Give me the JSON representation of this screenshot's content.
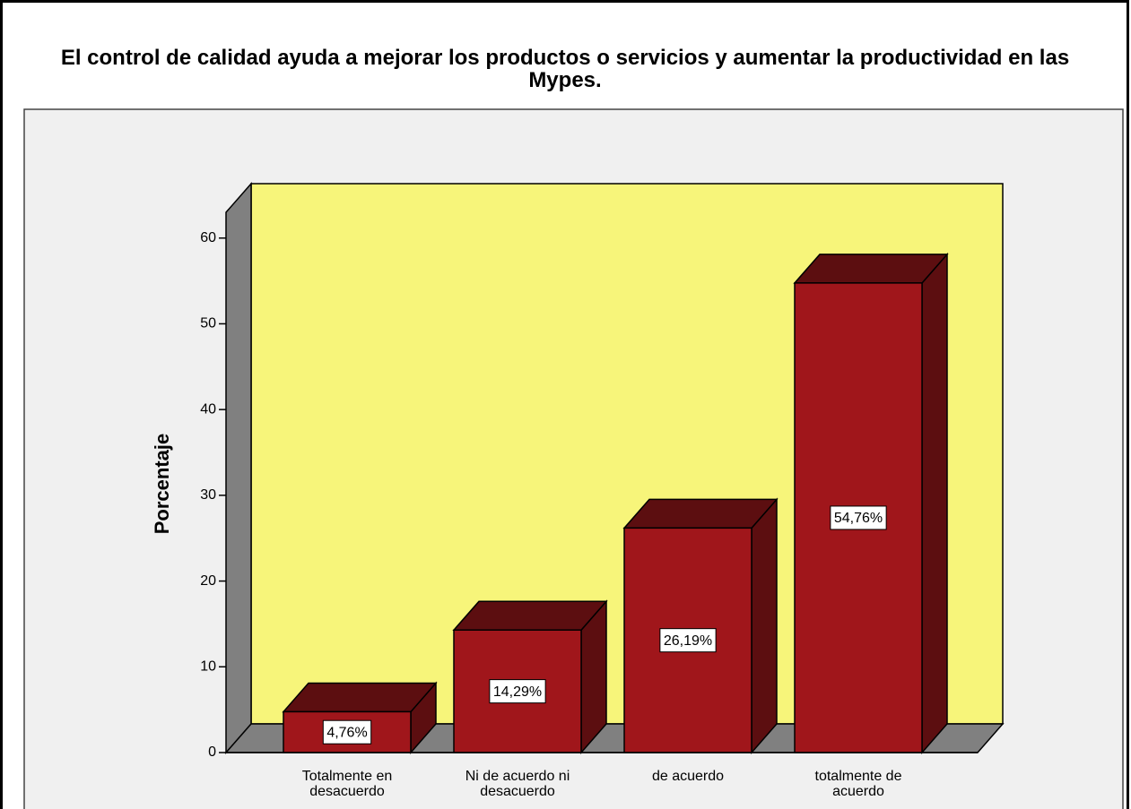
{
  "chart_data": {
    "type": "bar3d",
    "title": "El control de calidad ayuda a mejorar los productos o servicios y aumentar la productividad en las Mypes.",
    "y_label": "Porcentaje",
    "categories": [
      "Totalmente en desacuerdo",
      "Ni de acuerdo ni desacuerdo",
      "de acuerdo",
      "totalmente de acuerdo"
    ],
    "values": [
      4.76,
      14.29,
      26.19,
      54.76
    ],
    "value_labels": [
      "4,76%",
      "14,29%",
      "26,19%",
      "54,76%"
    ],
    "color": "#a0161b",
    "ylim": [
      0,
      63
    ],
    "yticks": [
      0,
      10,
      20,
      30,
      40,
      50,
      60
    ]
  }
}
